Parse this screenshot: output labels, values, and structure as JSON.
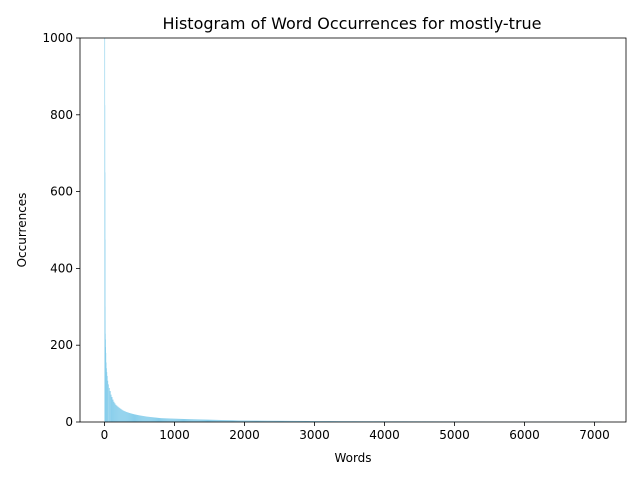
{
  "chart_data": {
    "type": "bar",
    "title": "Histogram of Word Occurrences for mostly-true",
    "xlabel": "Words",
    "ylabel": "Occurrences",
    "xlim": [
      -350,
      7450
    ],
    "ylim": [
      0,
      1000
    ],
    "xticks": [
      "0",
      "1000",
      "2000",
      "3000",
      "4000",
      "5000",
      "6000",
      "7000"
    ],
    "yticks": [
      "0",
      "200",
      "400",
      "600",
      "800",
      "1000"
    ],
    "bar_color": "#87CEEB",
    "n_words": 7100,
    "series": [
      {
        "points": [
          [
            0,
            1000
          ],
          [
            4,
            300
          ],
          [
            8,
            230
          ],
          [
            12,
            200
          ],
          [
            16,
            180
          ],
          [
            20,
            155
          ],
          [
            25,
            140
          ],
          [
            30,
            130
          ],
          [
            36,
            120
          ],
          [
            42,
            110
          ],
          [
            50,
            100
          ],
          [
            60,
            90
          ],
          [
            75,
            80
          ],
          [
            90,
            70
          ],
          [
            110,
            60
          ],
          [
            130,
            52
          ],
          [
            155,
            45
          ],
          [
            185,
            40
          ],
          [
            220,
            35
          ],
          [
            260,
            30
          ],
          [
            310,
            26
          ],
          [
            360,
            23
          ],
          [
            420,
            20
          ],
          [
            500,
            17
          ],
          [
            600,
            14
          ],
          [
            700,
            12
          ],
          [
            800,
            10
          ],
          [
            950,
            9
          ],
          [
            1100,
            8
          ],
          [
            1300,
            7
          ],
          [
            1500,
            6
          ],
          [
            1700,
            5
          ],
          [
            1900,
            4
          ],
          [
            2200,
            3.5
          ],
          [
            2600,
            3
          ],
          [
            3000,
            2.5
          ],
          [
            3600,
            2
          ],
          [
            4300,
            1.8
          ],
          [
            5000,
            1.5
          ],
          [
            6000,
            1.2
          ],
          [
            7000,
            1
          ],
          [
            7100,
            1
          ]
        ]
      }
    ]
  }
}
